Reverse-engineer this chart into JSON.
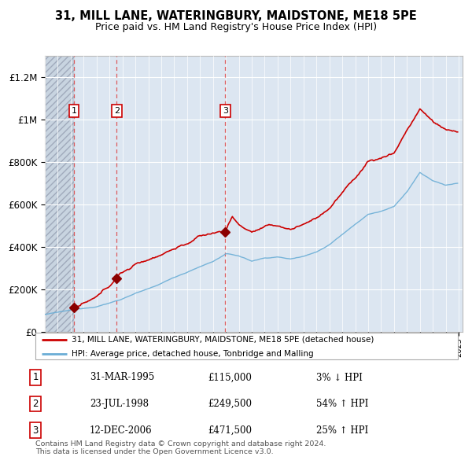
{
  "title": "31, MILL LANE, WATERINGBURY, MAIDSTONE, ME18 5PE",
  "subtitle": "Price paid vs. HM Land Registry's House Price Index (HPI)",
  "ylim": [
    0,
    1300000
  ],
  "yticks": [
    0,
    200000,
    400000,
    600000,
    800000,
    1000000,
    1200000
  ],
  "sale_dates": [
    1995.25,
    1998.56,
    2006.95
  ],
  "sale_prices": [
    115000,
    249500,
    471500
  ],
  "sale_labels": [
    "1",
    "2",
    "3"
  ],
  "hpi_line_color": "#6baed6",
  "price_line_color": "#cc0000",
  "sale_marker_color": "#8b0000",
  "dashed_line_color": "#e06060",
  "background_color": "#dce6f1",
  "hatch_bg_color": "#d0d8e4",
  "legend_entries": [
    "31, MILL LANE, WATERINGBURY, MAIDSTONE, ME18 5PE (detached house)",
    "HPI: Average price, detached house, Tonbridge and Malling"
  ],
  "table_rows": [
    [
      "1",
      "31-MAR-1995",
      "£115,000",
      "3% ↓ HPI"
    ],
    [
      "2",
      "23-JUL-1998",
      "£249,500",
      "54% ↑ HPI"
    ],
    [
      "3",
      "12-DEC-2006",
      "£471,500",
      "25% ↑ HPI"
    ]
  ],
  "footer_text": "Contains HM Land Registry data © Crown copyright and database right 2024.\nThis data is licensed under the Open Government Licence v3.0."
}
